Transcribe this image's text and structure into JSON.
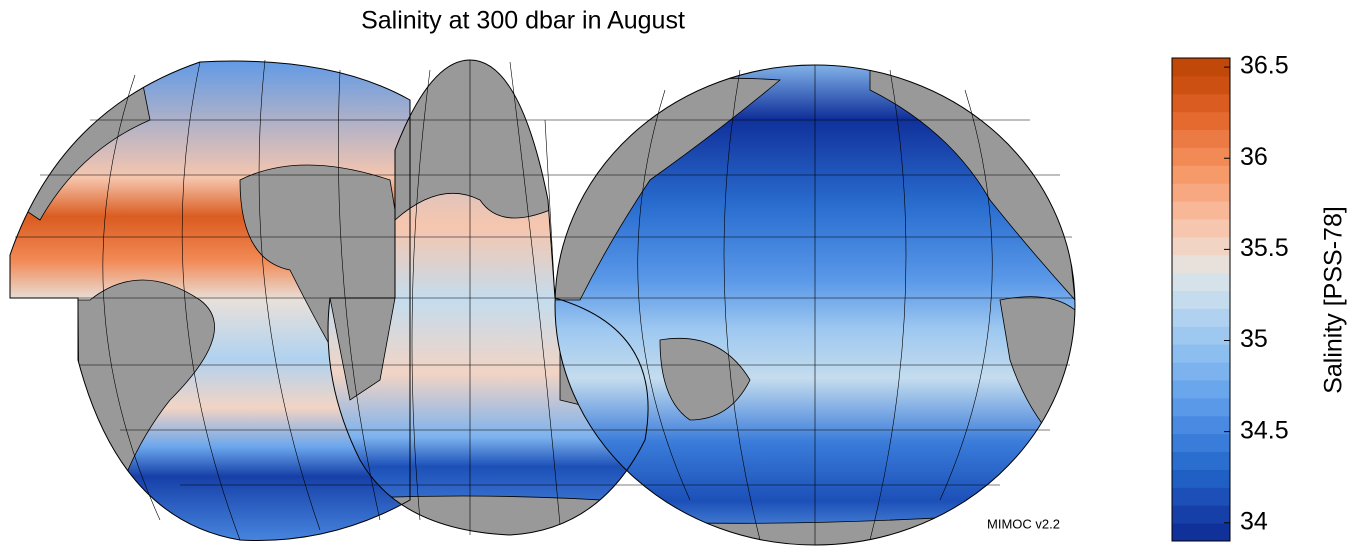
{
  "title": "Salinity at 300 dbar in August",
  "credit": "MIMOC v2.2",
  "colorbar": {
    "label": "Salinity [PSS-78]",
    "lim": [
      33.9,
      36.55
    ],
    "ticks": [
      34,
      34.5,
      35,
      35.5,
      36,
      36.5
    ],
    "colors": [
      "#10309a",
      "#1640a8",
      "#1c50b8",
      "#2060c4",
      "#2a6ed0",
      "#3a7cda",
      "#4a8ae2",
      "#5a98e8",
      "#6aa6ec",
      "#7cb2ee",
      "#8cbef0",
      "#9ec8f0",
      "#b0d2f0",
      "#c4dcee",
      "#d6e2ea",
      "#e8e0da",
      "#f2d4c4",
      "#f6c6ae",
      "#f8b898",
      "#f8a880",
      "#f69a6a",
      "#f28a56",
      "#ec7a44",
      "#e46a30",
      "#da5c20",
      "#cc5012",
      "#c04808"
    ]
  }
}
